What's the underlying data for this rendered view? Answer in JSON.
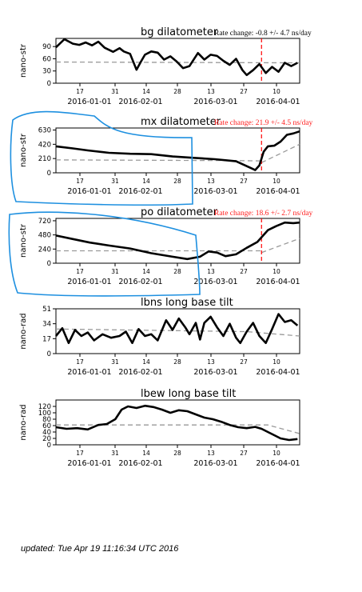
{
  "footer": {
    "updated": "updated: Tue Apr 19 11:16:34 UTC 2016"
  },
  "colors": {
    "series": "#000000",
    "reference": "#9a9a9a",
    "rate_text": "#ff2020",
    "marker": "#ff0000",
    "annotation_outline": "#1e90e0"
  },
  "x_axis": {
    "minor_ticks": [
      "17",
      "31",
      "14",
      "28",
      "13",
      "27",
      "10"
    ],
    "date_labels": [
      "2016-01-01",
      "2016-02-01",
      "2016-03-01",
      "2016-04-01"
    ]
  },
  "chart_data": [
    {
      "type": "line",
      "title": "bg dilatometer",
      "rate_label": "Rate change: -0.8 +/- 4.7 ns/day",
      "rate_color": "black",
      "ylabel": "nano-str",
      "yticks": [
        "0",
        "30",
        "60",
        "90"
      ],
      "ylim": [
        0,
        110
      ],
      "xlim": [
        0,
        115
      ],
      "marker_x": 97,
      "reference_line": {
        "points": [
          [
            0,
            52
          ],
          [
            115,
            50
          ]
        ]
      },
      "series": [
        {
          "points": [
            [
              0,
              88
            ],
            [
              4,
              108
            ],
            [
              8,
              97
            ],
            [
              11,
              94
            ],
            [
              14,
              100
            ],
            [
              17,
              93
            ],
            [
              20,
              102
            ],
            [
              23,
              87
            ],
            [
              27,
              77
            ],
            [
              30,
              86
            ],
            [
              32,
              78
            ],
            [
              35,
              72
            ],
            [
              38,
              33
            ],
            [
              40,
              52
            ],
            [
              42,
              70
            ],
            [
              45,
              78
            ],
            [
              48,
              75
            ],
            [
              51,
              58
            ],
            [
              54,
              66
            ],
            [
              57,
              53
            ],
            [
              60,
              37
            ],
            [
              63,
              42
            ],
            [
              67,
              74
            ],
            [
              70,
              58
            ],
            [
              73,
              70
            ],
            [
              76,
              67
            ],
            [
              79,
              55
            ],
            [
              82,
              45
            ],
            [
              85,
              60
            ],
            [
              88,
              32
            ],
            [
              90,
              20
            ],
            [
              93,
              32
            ],
            [
              96,
              47
            ],
            [
              99,
              25
            ],
            [
              102,
              40
            ],
            [
              105,
              28
            ],
            [
              108,
              50
            ],
            [
              111,
              42
            ],
            [
              114,
              50
            ]
          ]
        }
      ]
    },
    {
      "type": "line",
      "title": "mx dilatometer",
      "rate_label": "Rate change: 21.9 +/- 4.5 ns/day",
      "rate_color": "red",
      "ylabel": "nano-str",
      "yticks": [
        "0",
        "210",
        "420",
        "630"
      ],
      "ylim": [
        0,
        660
      ],
      "xlim": [
        0,
        115
      ],
      "marker_x": 97,
      "reference_line": {
        "points": [
          [
            0,
            190
          ],
          [
            85,
            180
          ],
          [
            97,
            175
          ]
        ]
      },
      "projection": {
        "points": [
          [
            97,
            150
          ],
          [
            115,
            420
          ]
        ]
      },
      "series": [
        {
          "points": [
            [
              0,
              390
            ],
            [
              8,
              360
            ],
            [
              15,
              330
            ],
            [
              25,
              295
            ],
            [
              35,
              280
            ],
            [
              45,
              275
            ],
            [
              55,
              240
            ],
            [
              65,
              220
            ],
            [
              75,
              200
            ],
            [
              85,
              170
            ],
            [
              92,
              70
            ],
            [
              94,
              40
            ],
            [
              96,
              110
            ],
            [
              98,
              310
            ],
            [
              100,
              390
            ],
            [
              103,
              400
            ],
            [
              106,
              460
            ],
            [
              109,
              560
            ],
            [
              112,
              580
            ],
            [
              115,
              610
            ]
          ]
        }
      ]
    },
    {
      "type": "line",
      "title": "po dilatometer",
      "rate_label": "Rate change: 18.6 +/- 2.7 ns/day",
      "rate_color": "red",
      "ylabel": "nano-str",
      "yticks": [
        "0",
        "240",
        "480",
        "720"
      ],
      "ylim": [
        0,
        760
      ],
      "xlim": [
        0,
        115
      ],
      "marker_x": 97,
      "reference_line": {
        "points": [
          [
            0,
            210
          ],
          [
            97,
            210
          ]
        ]
      },
      "projection": {
        "points": [
          [
            97,
            180
          ],
          [
            115,
            420
          ]
        ]
      },
      "series": [
        {
          "points": [
            [
              0,
              470
            ],
            [
              8,
              410
            ],
            [
              16,
              350
            ],
            [
              25,
              300
            ],
            [
              35,
              250
            ],
            [
              45,
              170
            ],
            [
              55,
              110
            ],
            [
              62,
              70
            ],
            [
              68,
              110
            ],
            [
              72,
              200
            ],
            [
              76,
              180
            ],
            [
              80,
              120
            ],
            [
              85,
              150
            ],
            [
              90,
              260
            ],
            [
              95,
              360
            ],
            [
              100,
              560
            ],
            [
              104,
              630
            ],
            [
              108,
              690
            ],
            [
              112,
              680
            ],
            [
              115,
              690
            ]
          ]
        }
      ]
    },
    {
      "type": "line",
      "title": "lbns long base tilt",
      "rate_label": "",
      "rate_color": "black",
      "ylabel": "nano-rad",
      "yticks": [
        "0",
        "17",
        "34",
        "51"
      ],
      "ylim": [
        0,
        51
      ],
      "xlim": [
        0,
        115
      ],
      "reference_line": {
        "points": [
          [
            0,
            28
          ],
          [
            90,
            25
          ],
          [
            115,
            20
          ]
        ]
      },
      "series": [
        {
          "points": [
            [
              0,
              20
            ],
            [
              3,
              29
            ],
            [
              6,
              12
            ],
            [
              9,
              27
            ],
            [
              12,
              20
            ],
            [
              15,
              24
            ],
            [
              18,
              15
            ],
            [
              22,
              22
            ],
            [
              26,
              18
            ],
            [
              30,
              20
            ],
            [
              33,
              25
            ],
            [
              36,
              12
            ],
            [
              39,
              28
            ],
            [
              42,
              20
            ],
            [
              45,
              22
            ],
            [
              48,
              15
            ],
            [
              52,
              38
            ],
            [
              55,
              27
            ],
            [
              58,
              40
            ],
            [
              61,
              30
            ],
            [
              63,
              22
            ],
            [
              66,
              35
            ],
            [
              68,
              16
            ],
            [
              70,
              35
            ],
            [
              73,
              42
            ],
            [
              76,
              30
            ],
            [
              79,
              20
            ],
            [
              82,
              34
            ],
            [
              85,
              18
            ],
            [
              87,
              12
            ],
            [
              90,
              25
            ],
            [
              93,
              35
            ],
            [
              96,
              20
            ],
            [
              99,
              12
            ],
            [
              102,
              28
            ],
            [
              105,
              45
            ],
            [
              108,
              36
            ],
            [
              111,
              38
            ],
            [
              114,
              32
            ]
          ]
        }
      ]
    },
    {
      "type": "line",
      "title": "lbew long base tilt",
      "rate_label": "",
      "rate_color": "black",
      "ylabel": "nano-rad",
      "yticks": [
        "0",
        "20",
        "40",
        "60",
        "80",
        "100",
        "120"
      ],
      "ylim": [
        0,
        140
      ],
      "xlim": [
        0,
        115
      ],
      "reference_line": {
        "points": [
          [
            0,
            62
          ],
          [
            100,
            62
          ],
          [
            115,
            35
          ]
        ]
      },
      "series": [
        {
          "points": [
            [
              0,
              55
            ],
            [
              5,
              50
            ],
            [
              10,
              52
            ],
            [
              15,
              48
            ],
            [
              20,
              62
            ],
            [
              24,
              65
            ],
            [
              28,
              80
            ],
            [
              31,
              110
            ],
            [
              34,
              120
            ],
            [
              38,
              115
            ],
            [
              42,
              122
            ],
            [
              46,
              118
            ],
            [
              50,
              110
            ],
            [
              54,
              100
            ],
            [
              58,
              108
            ],
            [
              62,
              105
            ],
            [
              66,
              95
            ],
            [
              70,
              85
            ],
            [
              74,
              80
            ],
            [
              78,
              72
            ],
            [
              82,
              62
            ],
            [
              86,
              55
            ],
            [
              90,
              52
            ],
            [
              94,
              56
            ],
            [
              97,
              50
            ],
            [
              100,
              40
            ],
            [
              103,
              30
            ],
            [
              106,
              20
            ],
            [
              110,
              15
            ],
            [
              114,
              18
            ]
          ]
        }
      ]
    }
  ]
}
